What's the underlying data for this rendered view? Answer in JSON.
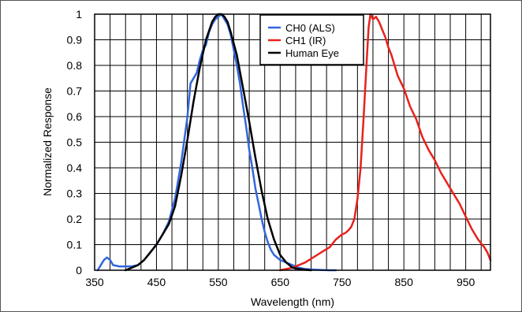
{
  "chart_data": {
    "type": "line",
    "title": "",
    "xlabel": "Wavelength (nm)",
    "ylabel": "Normalized Response",
    "xlim": [
      350,
      990
    ],
    "ylim": [
      0,
      1
    ],
    "x_ticks": [
      350,
      450,
      550,
      650,
      750,
      850,
      950
    ],
    "y_ticks": [
      0,
      0.1,
      0.2,
      0.3,
      0.4,
      0.5,
      0.6,
      0.7,
      0.8,
      0.9,
      1
    ],
    "x_tick_labels": [
      "350",
      "450",
      "550",
      "650",
      "750",
      "850",
      "950"
    ],
    "y_tick_labels": [
      "0",
      "0.1",
      "0.2",
      "0.3",
      "0.4",
      "0.5",
      "0.6",
      "0.7",
      "0.8",
      "0.9",
      "1"
    ],
    "grid": true,
    "legend_position": "top-center",
    "series": [
      {
        "name": "CH0 (ALS)",
        "color": "#3366dd",
        "x": [
          355,
          360,
          365,
          370,
          375,
          380,
          390,
          400,
          410,
          420,
          430,
          440,
          450,
          460,
          470,
          480,
          490,
          500,
          505,
          510,
          515,
          520,
          525,
          530,
          535,
          540,
          545,
          550,
          555,
          560,
          565,
          570,
          575,
          580,
          585,
          590,
          595,
          600,
          605,
          610,
          615,
          620,
          625,
          630,
          635,
          640,
          645,
          650,
          655,
          660,
          665,
          670,
          675,
          680,
          690,
          700,
          710,
          720,
          730,
          740
        ],
        "y": [
          0.0,
          0.02,
          0.04,
          0.05,
          0.04,
          0.02,
          0.015,
          0.015,
          0.015,
          0.02,
          0.04,
          0.07,
          0.1,
          0.14,
          0.19,
          0.28,
          0.42,
          0.6,
          0.73,
          0.75,
          0.77,
          0.82,
          0.86,
          0.88,
          0.93,
          0.96,
          0.98,
          0.99,
          1.0,
          0.98,
          0.96,
          0.92,
          0.86,
          0.8,
          0.73,
          0.64,
          0.56,
          0.47,
          0.4,
          0.32,
          0.26,
          0.2,
          0.15,
          0.11,
          0.08,
          0.06,
          0.05,
          0.04,
          0.035,
          0.03,
          0.025,
          0.02,
          0.015,
          0.01,
          0.005,
          0.003,
          0.002,
          0.001,
          0.0,
          0.0
        ]
      },
      {
        "name": "CH1 (IR)",
        "color": "#e8211c",
        "x": [
          650,
          660,
          670,
          680,
          690,
          700,
          710,
          720,
          730,
          740,
          750,
          755,
          760,
          765,
          770,
          775,
          780,
          785,
          790,
          793,
          796,
          800,
          805,
          810,
          815,
          820,
          825,
          830,
          840,
          850,
          860,
          870,
          880,
          890,
          900,
          910,
          920,
          930,
          940,
          950,
          960,
          970,
          980,
          985,
          990
        ],
        "y": [
          0.0,
          0.005,
          0.01,
          0.02,
          0.03,
          0.045,
          0.06,
          0.075,
          0.09,
          0.12,
          0.14,
          0.145,
          0.155,
          0.17,
          0.2,
          0.28,
          0.4,
          0.6,
          0.82,
          0.95,
          1.0,
          0.98,
          0.99,
          0.97,
          0.94,
          0.91,
          0.87,
          0.84,
          0.76,
          0.71,
          0.64,
          0.59,
          0.52,
          0.47,
          0.43,
          0.38,
          0.34,
          0.3,
          0.26,
          0.21,
          0.16,
          0.12,
          0.09,
          0.07,
          0.04
        ]
      },
      {
        "name": "Human Eye",
        "color": "#000000",
        "x": [
          400,
          410,
          420,
          430,
          440,
          450,
          460,
          470,
          480,
          490,
          500,
          510,
          520,
          530,
          540,
          545,
          550,
          555,
          560,
          565,
          570,
          580,
          590,
          600,
          610,
          620,
          630,
          640,
          650,
          660,
          670,
          680,
          690,
          700
        ],
        "y": [
          0.0,
          0.01,
          0.02,
          0.04,
          0.07,
          0.1,
          0.14,
          0.18,
          0.25,
          0.37,
          0.51,
          0.66,
          0.79,
          0.9,
          0.97,
          0.99,
          1.0,
          1.0,
          0.99,
          0.97,
          0.93,
          0.84,
          0.71,
          0.58,
          0.44,
          0.31,
          0.2,
          0.12,
          0.06,
          0.03,
          0.01,
          0.005,
          0.002,
          0.0
        ]
      }
    ]
  }
}
